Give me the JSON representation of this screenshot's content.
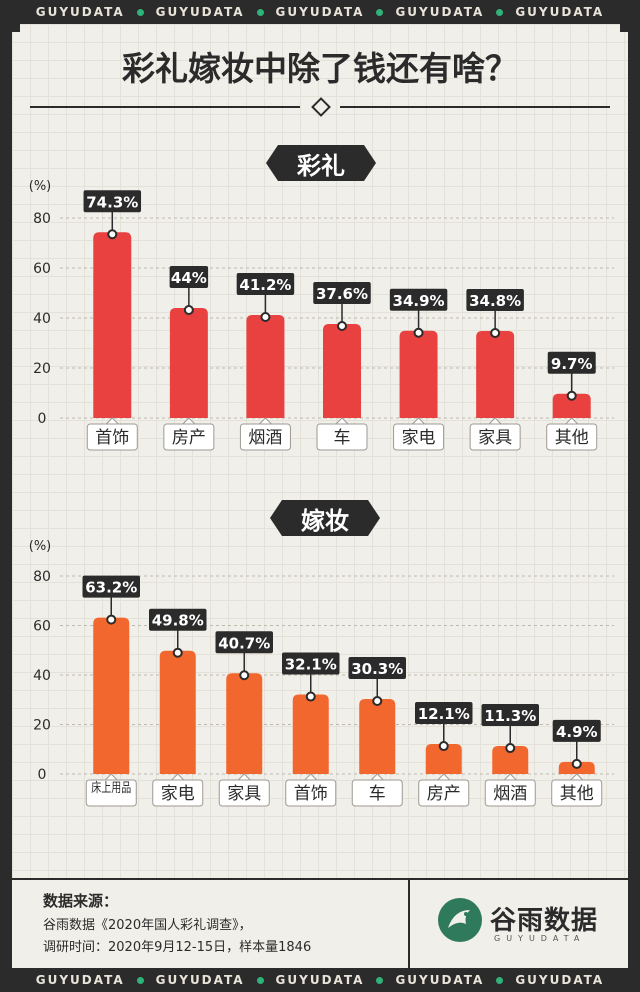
{
  "brand_strip": [
    "GUYUDATA",
    "GUYUDATA",
    "GUYUDATA",
    "GUYUDATA",
    "GUYUDATA"
  ],
  "title": "彩礼嫁妆中除了钱还有啥？",
  "colors": {
    "caili": "#e8413f",
    "jiazhuang": "#f2672d",
    "dark": "#2b2b2b",
    "bg": "#f1efe9",
    "logo": "#2f7a5d"
  },
  "chart_data": [
    {
      "type": "bar",
      "title": "彩礼",
      "ylabel": "(%)",
      "ylim": [
        0,
        80
      ],
      "yticks": [
        0,
        20,
        40,
        60,
        80
      ],
      "categories": [
        "首饰",
        "房产",
        "烟酒",
        "车",
        "家电",
        "家具",
        "其他"
      ],
      "values": [
        74.3,
        44,
        41.2,
        37.6,
        34.9,
        34.8,
        9.7
      ],
      "labels": [
        "74.3%",
        "44%",
        "41.2%",
        "37.6%",
        "34.9%",
        "34.8%",
        "9.7%"
      ]
    },
    {
      "type": "bar",
      "title": "嫁妆",
      "ylabel": "(%)",
      "ylim": [
        0,
        80
      ],
      "yticks": [
        0,
        20,
        40,
        60,
        80
      ],
      "categories": [
        "床上用品",
        "家电",
        "家具",
        "首饰",
        "车",
        "房产",
        "烟酒",
        "其他"
      ],
      "values": [
        63.2,
        49.8,
        40.7,
        32.1,
        30.3,
        12.1,
        11.3,
        4.9
      ],
      "labels": [
        "63.2%",
        "49.8%",
        "40.7%",
        "32.1%",
        "30.3%",
        "12.1%",
        "11.3%",
        "4.9%"
      ]
    }
  ],
  "footer": {
    "source_title": "数据来源：",
    "source_line1": "谷雨数据《2020年国人彩礼调查》，",
    "source_line2": "调研时间：2020年9月12-15日，样本量1846",
    "logo_name": "谷雨数据",
    "logo_sub": "GUYUDATA",
    "logo_icon": "bird-icon"
  }
}
